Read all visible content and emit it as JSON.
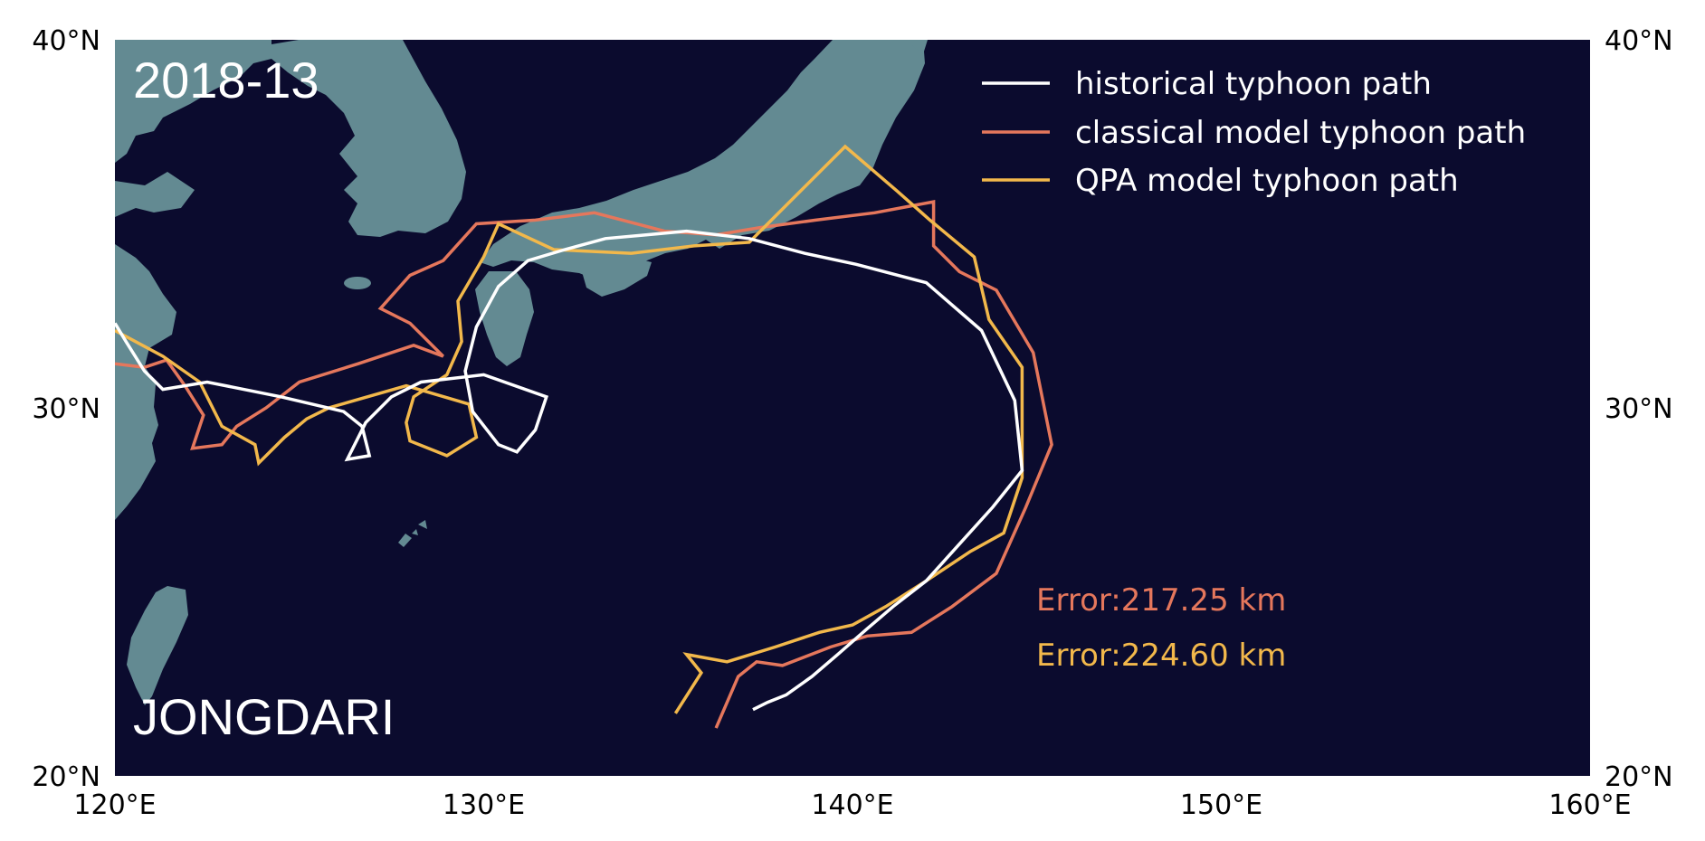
{
  "map": {
    "season_label": "2018-13",
    "typhoon_name": "JONGDARI",
    "lon_range": [
      120,
      160
    ],
    "lat_range": [
      20,
      40
    ],
    "x_ticks": [
      {
        "lon": 120,
        "label": "120°E"
      },
      {
        "lon": 130,
        "label": "130°E"
      },
      {
        "lon": 140,
        "label": "140°E"
      },
      {
        "lon": 150,
        "label": "150°E"
      },
      {
        "lon": 160,
        "label": "160°E"
      }
    ],
    "y_ticks": [
      {
        "lat": 20,
        "label": "20°N"
      },
      {
        "lat": 30,
        "label": "30°N"
      },
      {
        "lat": 40,
        "label": "40°N"
      }
    ],
    "colors": {
      "ocean": "#0b0b2e",
      "land": "#638a92",
      "historical": "#ffffff",
      "classical": "#e5775c",
      "qpa": "#f2b84b"
    }
  },
  "legend": {
    "placement": "top-right",
    "items": [
      {
        "key": "historical",
        "label": "historical typhoon path"
      },
      {
        "key": "classical",
        "label": "classical model typhoon path"
      },
      {
        "key": "qpa",
        "label": "QPA model typhoon path"
      }
    ]
  },
  "errors": {
    "classical": "Error:217.25 km",
    "qpa": "Error:224.60 km"
  },
  "tracks": {
    "historical": [
      [
        137.3,
        21.8
      ],
      [
        137.7,
        22.0
      ],
      [
        138.2,
        22.2
      ],
      [
        138.9,
        22.7
      ],
      [
        139.6,
        23.3
      ],
      [
        140.4,
        24.0
      ],
      [
        141.1,
        24.6
      ],
      [
        142.0,
        25.3
      ],
      [
        142.9,
        26.3
      ],
      [
        143.8,
        27.3
      ],
      [
        144.6,
        28.3
      ],
      [
        144.4,
        30.2
      ],
      [
        143.5,
        32.1
      ],
      [
        142.0,
        33.4
      ],
      [
        140.1,
        33.9
      ],
      [
        138.7,
        34.2
      ],
      [
        137.2,
        34.6
      ],
      [
        135.5,
        34.8
      ],
      [
        134.4,
        34.7
      ],
      [
        133.3,
        34.6
      ],
      [
        132.2,
        34.3
      ],
      [
        131.2,
        34.0
      ],
      [
        130.4,
        33.3
      ],
      [
        129.8,
        32.2
      ],
      [
        129.5,
        31.0
      ],
      [
        129.7,
        29.9
      ],
      [
        130.4,
        29.0
      ],
      [
        130.9,
        28.8
      ],
      [
        131.4,
        29.4
      ],
      [
        131.7,
        30.3
      ],
      [
        130.0,
        30.9
      ],
      [
        128.3,
        30.7
      ],
      [
        127.5,
        30.3
      ],
      [
        126.8,
        29.6
      ],
      [
        126.3,
        28.6
      ],
      [
        126.9,
        28.7
      ],
      [
        126.7,
        29.5
      ],
      [
        126.2,
        29.9
      ],
      [
        124.5,
        30.3
      ],
      [
        122.5,
        30.7
      ],
      [
        121.3,
        30.5
      ],
      [
        120.8,
        31.0
      ],
      [
        120.3,
        31.8
      ],
      [
        120.0,
        32.3
      ]
    ],
    "classical": [
      [
        136.3,
        21.3
      ],
      [
        136.9,
        22.7
      ],
      [
        137.4,
        23.1
      ],
      [
        138.1,
        23.0
      ],
      [
        139.4,
        23.5
      ],
      [
        140.4,
        23.8
      ],
      [
        141.6,
        23.9
      ],
      [
        142.7,
        24.6
      ],
      [
        143.9,
        25.5
      ],
      [
        144.7,
        27.3
      ],
      [
        145.4,
        29.0
      ],
      [
        144.9,
        31.5
      ],
      [
        143.9,
        33.2
      ],
      [
        142.9,
        33.7
      ],
      [
        142.2,
        34.4
      ],
      [
        142.2,
        35.6
      ],
      [
        140.6,
        35.3
      ],
      [
        139.0,
        35.1
      ],
      [
        137.5,
        34.9
      ],
      [
        136.3,
        34.7
      ],
      [
        134.9,
        34.8
      ],
      [
        133.0,
        35.3
      ],
      [
        131.4,
        35.1
      ],
      [
        129.8,
        35.0
      ],
      [
        128.9,
        34.0
      ],
      [
        128.0,
        33.6
      ],
      [
        127.2,
        32.7
      ],
      [
        128.0,
        32.3
      ],
      [
        128.9,
        31.4
      ],
      [
        128.1,
        31.7
      ],
      [
        126.6,
        31.2
      ],
      [
        125.0,
        30.7
      ],
      [
        124.1,
        30.0
      ],
      [
        123.3,
        29.5
      ],
      [
        122.9,
        29.0
      ],
      [
        122.1,
        28.9
      ],
      [
        122.4,
        29.8
      ],
      [
        121.9,
        30.6
      ],
      [
        121.4,
        31.3
      ],
      [
        120.8,
        31.1
      ],
      [
        120.0,
        31.2
      ]
    ],
    "qpa": [
      [
        135.2,
        21.7
      ],
      [
        135.9,
        22.8
      ],
      [
        135.5,
        23.3
      ],
      [
        136.6,
        23.1
      ],
      [
        137.9,
        23.5
      ],
      [
        139.1,
        23.9
      ],
      [
        140.0,
        24.1
      ],
      [
        140.9,
        24.6
      ],
      [
        142.0,
        25.3
      ],
      [
        143.2,
        26.1
      ],
      [
        144.1,
        26.6
      ],
      [
        144.6,
        28.1
      ],
      [
        144.6,
        31.1
      ],
      [
        143.7,
        32.4
      ],
      [
        143.3,
        34.1
      ],
      [
        142.1,
        35.1
      ],
      [
        141.2,
        35.9
      ],
      [
        139.8,
        37.1
      ],
      [
        138.6,
        35.9
      ],
      [
        137.2,
        34.5
      ],
      [
        135.7,
        34.4
      ],
      [
        134.0,
        34.2
      ],
      [
        131.9,
        34.3
      ],
      [
        130.4,
        35.0
      ],
      [
        130.0,
        34.1
      ],
      [
        129.3,
        32.9
      ],
      [
        129.4,
        31.8
      ],
      [
        129.0,
        30.9
      ],
      [
        128.1,
        30.3
      ],
      [
        127.9,
        29.6
      ],
      [
        128.0,
        29.1
      ],
      [
        129.0,
        28.7
      ],
      [
        129.8,
        29.2
      ],
      [
        129.6,
        30.1
      ],
      [
        127.9,
        30.6
      ],
      [
        125.8,
        30.0
      ],
      [
        125.2,
        29.7
      ],
      [
        124.6,
        29.2
      ],
      [
        123.9,
        28.5
      ],
      [
        123.8,
        29.0
      ],
      [
        122.9,
        29.5
      ],
      [
        122.3,
        30.7
      ],
      [
        121.3,
        31.4
      ],
      [
        120.0,
        32.1
      ]
    ]
  }
}
